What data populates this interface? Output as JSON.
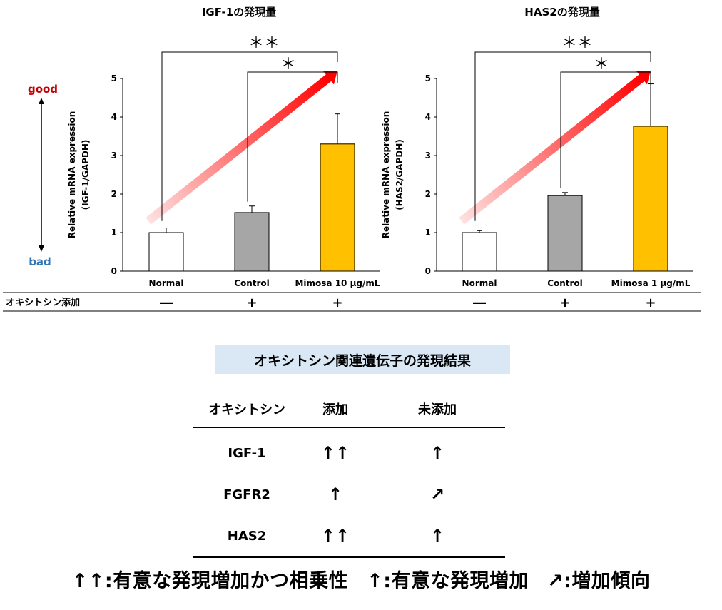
{
  "chart_data": [
    {
      "type": "bar",
      "title": "IGF-1の発現量",
      "ylabel": "Relative mRNA expression",
      "ylabel2": "(IGF-1/GAPDH)",
      "categories": [
        "Normal",
        "Control",
        "Mimosa 10 μg/mL"
      ],
      "values": [
        1.0,
        1.52,
        3.3
      ],
      "errors": [
        0.12,
        0.17,
        0.78
      ],
      "colors": [
        "#ffffff",
        "#a6a6a6",
        "#ffc000"
      ],
      "ylim": [
        0,
        5
      ],
      "yticks": [
        "0",
        "1",
        "2",
        "3",
        "4",
        "5"
      ],
      "oxytocin": [
        "―",
        "+",
        "+"
      ],
      "significance": [
        {
          "from": "Normal",
          "to": "Mimosa 10 μg/mL",
          "label": "＊＊"
        },
        {
          "from": "Control",
          "to": "Mimosa 10 μg/mL",
          "label": "＊"
        }
      ]
    },
    {
      "type": "bar",
      "title": "HAS2の発現量",
      "ylabel": "Relative mRNA expression",
      "ylabel2": "(HAS2/GAPDH)",
      "categories": [
        "Normal",
        "Control",
        "Mimosa 1 μg/mL"
      ],
      "values": [
        1.0,
        1.96,
        3.76
      ],
      "errors": [
        0.05,
        0.08,
        1.1
      ],
      "colors": [
        "#ffffff",
        "#a6a6a6",
        "#ffc000"
      ],
      "ylim": [
        0,
        5
      ],
      "yticks": [
        "0",
        "1",
        "2",
        "3",
        "4",
        "5"
      ],
      "oxytocin": [
        "―",
        "+",
        "+"
      ],
      "significance": [
        {
          "from": "Normal",
          "to": "Mimosa 1 μg/mL",
          "label": "＊＊"
        },
        {
          "from": "Control",
          "to": "Mimosa 1 μg/mL",
          "label": "＊"
        }
      ]
    }
  ],
  "scale_legend": {
    "good": "good",
    "bad": "bad",
    "good_color": "#c00000",
    "bad_color": "#2e75b6"
  },
  "row_label": "オキシトシン添加",
  "table": {
    "title": "オキシトシン関連遺伝子の発現結果",
    "headers": [
      "オキシトシン",
      "添加",
      "未添加"
    ],
    "rows": [
      {
        "gene": "IGF-1",
        "added": "↑↑",
        "not_added": "↑"
      },
      {
        "gene": "FGFR2",
        "added": "↑",
        "not_added": "↗"
      },
      {
        "gene": "HAS2",
        "added": "↑↑",
        "not_added": "↑"
      }
    ]
  },
  "legend": [
    "↑↑:有意な発現増加かつ相乗性",
    "↑:有意な発現増加",
    "↗:増加傾向"
  ]
}
